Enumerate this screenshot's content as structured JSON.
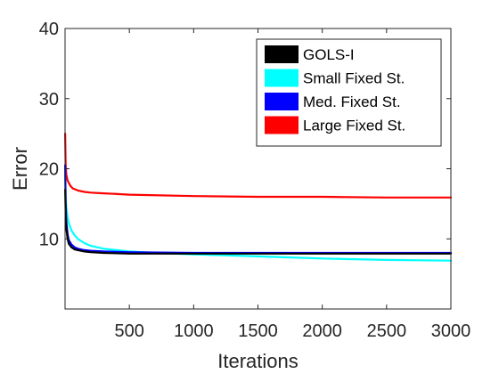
{
  "chart_data": {
    "type": "line",
    "xlabel": "Iterations",
    "ylabel": "Error",
    "xlim": [
      0,
      3000
    ],
    "ylim": [
      0,
      40
    ],
    "xticks": [
      500,
      1000,
      1500,
      2000,
      2500,
      3000
    ],
    "yticks": [
      10,
      20,
      30,
      40
    ],
    "grid": false,
    "legend_position": "top-right",
    "series": [
      {
        "name": "Large Fixed St.",
        "color": "#ff0000",
        "x": [
          1,
          5,
          10,
          20,
          40,
          60,
          100,
          150,
          200,
          300,
          500,
          1000,
          1500,
          2000,
          2500,
          3000
        ],
        "y": [
          25,
          20.5,
          19.2,
          18.3,
          17.6,
          17.2,
          16.9,
          16.7,
          16.6,
          16.5,
          16.3,
          16.1,
          16.0,
          16.0,
          15.9,
          15.9
        ]
      },
      {
        "name": "Small Fixed St.",
        "color": "#00ffff",
        "x": [
          1,
          5,
          10,
          20,
          30,
          50,
          75,
          100,
          150,
          200,
          300,
          400,
          500,
          700,
          1000,
          1500,
          2000,
          2500,
          3000
        ],
        "y": [
          19,
          16,
          14.5,
          13.0,
          12.2,
          11.2,
          10.5,
          10.0,
          9.4,
          9.0,
          8.6,
          8.4,
          8.2,
          8.0,
          7.8,
          7.5,
          7.2,
          7.0,
          6.9
        ]
      },
      {
        "name": "Med. Fixed St.",
        "color": "#0000ff",
        "x": [
          1,
          5,
          10,
          20,
          30,
          50,
          75,
          100,
          150,
          200,
          300,
          500,
          1000,
          1500,
          2000,
          2500,
          3000
        ],
        "y": [
          20.5,
          15.0,
          12.5,
          10.6,
          9.8,
          9.2,
          8.8,
          8.6,
          8.4,
          8.3,
          8.2,
          8.1,
          8.0,
          8.0,
          8.0,
          8.0,
          8.0
        ]
      },
      {
        "name": "GOLS-I",
        "color": "#000000",
        "x": [
          1,
          5,
          10,
          20,
          30,
          50,
          75,
          100,
          150,
          200,
          300,
          500,
          1000,
          1500,
          2000,
          2500,
          3000
        ],
        "y": [
          17,
          13.5,
          11.5,
          10.0,
          9.3,
          8.8,
          8.5,
          8.4,
          8.2,
          8.1,
          8.0,
          7.9,
          7.9,
          7.9,
          7.9,
          7.9,
          7.9
        ]
      }
    ],
    "legend_order": [
      "GOLS-I",
      "Small Fixed St.",
      "Med. Fixed St.",
      "Large Fixed St."
    ]
  }
}
